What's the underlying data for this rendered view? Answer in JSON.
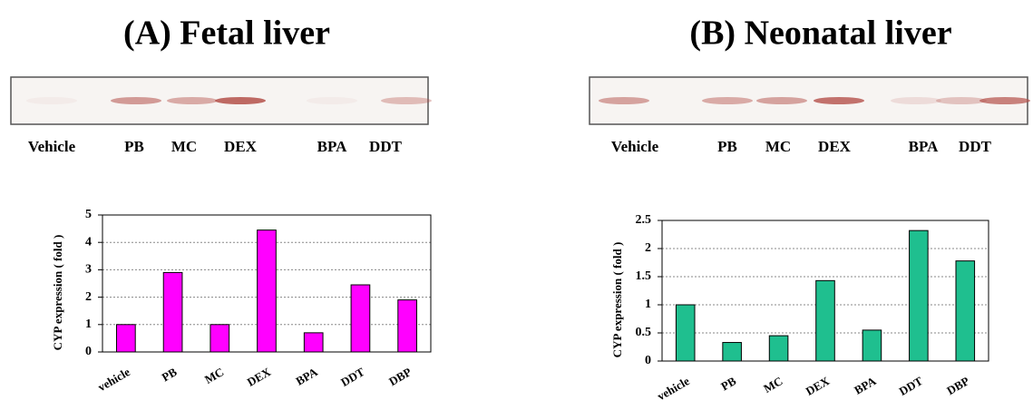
{
  "chart_data": [
    {
      "type": "bar",
      "title": "(A) Fetal liver",
      "blot_lanes": [
        "Vehicle",
        "PB",
        "MC",
        "DEX",
        "BPA",
        "DDT"
      ],
      "y_label": "CYP expression ( fold )",
      "categories": [
        "vehicle",
        "PB",
        "MC",
        "DEX",
        "BPA",
        "DDT",
        "DBP"
      ],
      "values": [
        1,
        2.9,
        1,
        4.45,
        0.7,
        2.45,
        1.9
      ],
      "color": "#ff00ff",
      "ylim": [
        0,
        5
      ],
      "yticks": [
        0,
        1,
        2,
        3,
        4,
        5
      ],
      "grid": true
    },
    {
      "type": "bar",
      "title": "(B) Neonatal liver",
      "blot_lanes": [
        "Vehicle",
        "PB",
        "MC",
        "DEX",
        "BPA",
        "DDT"
      ],
      "y_label": "CYP expression ( fold )",
      "categories": [
        "vehicle",
        "PB",
        "MC",
        "DEX",
        "BPA",
        "DDT",
        "DBP"
      ],
      "values": [
        1,
        0.33,
        0.45,
        1.43,
        0.55,
        2.32,
        1.78
      ],
      "color": "#1fbf8f",
      "ylim": [
        0,
        2.5
      ],
      "yticks": [
        0,
        0.5,
        1,
        1.5,
        2,
        2.5
      ],
      "grid": true
    }
  ]
}
